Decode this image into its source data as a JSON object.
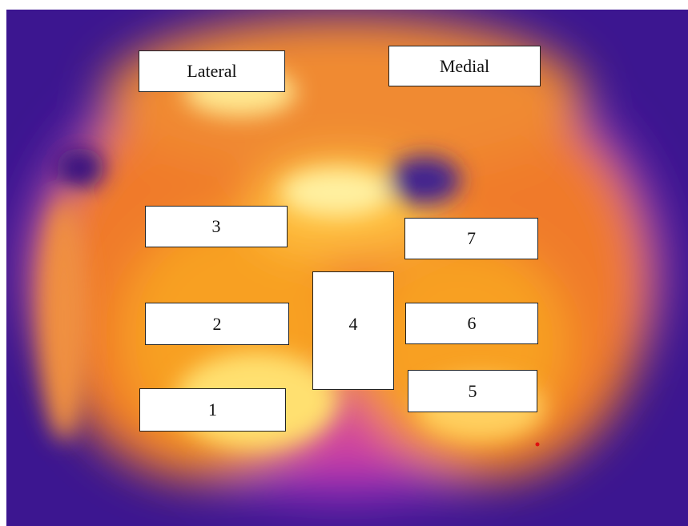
{
  "labels": {
    "lateral": "Lateral",
    "medial": "Medial",
    "regions": [
      "1",
      "2",
      "3",
      "4",
      "5",
      "6",
      "7"
    ]
  }
}
